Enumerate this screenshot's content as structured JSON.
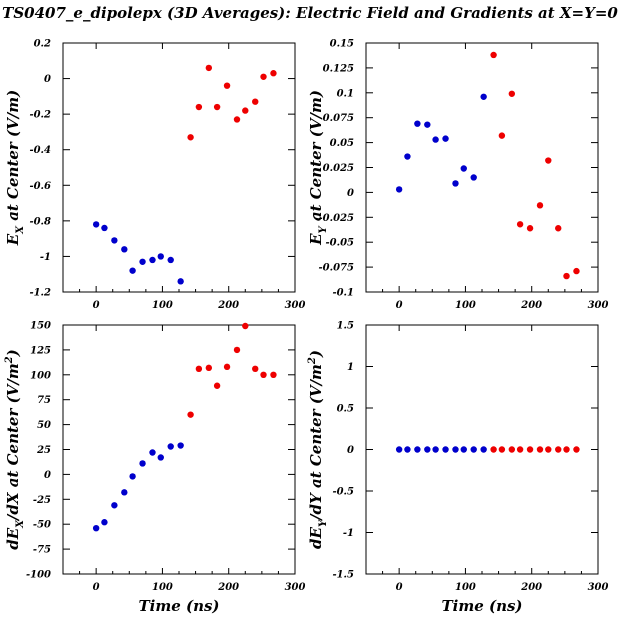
{
  "title": "TS0407_e_dipolepx (3D Averages): Electric Field and Gradients at X=Y=0",
  "colors": {
    "early": "#0000cc",
    "late": "#ee0000",
    "frame": "#000000"
  },
  "chart_data": [
    {
      "type": "scatter",
      "xlabel": "",
      "ylabel": "E_X at Center (V/m)",
      "ylabel_parts": {
        "main": "E",
        "sub": "X",
        "rest": " at Center (V/m)"
      },
      "xlim": [
        -50,
        300
      ],
      "ylim": [
        -1.2,
        0.2
      ],
      "xticks": [
        0,
        100,
        200,
        300
      ],
      "yticks": [
        0.2,
        0,
        -0.2,
        -0.4,
        -0.6,
        -0.8,
        -1,
        -1.2
      ],
      "ytick_labels": [
        "0.2",
        "0",
        "-0.2",
        "-0.4",
        "-0.6",
        "-0.8",
        "-1",
        "-1.2"
      ],
      "series": [
        {
          "color": "#0000cc",
          "x": [
            0,
            12.5,
            27.5,
            42.5,
            55,
            70,
            85,
            97.5,
            112.5,
            127.5
          ],
          "y": [
            -0.82,
            -0.84,
            -0.91,
            -0.96,
            -1.08,
            -1.03,
            -1.02,
            -1.0,
            -1.02,
            -1.14
          ]
        },
        {
          "color": "#ee0000",
          "x": [
            142.5,
            155,
            170,
            182.5,
            197.5,
            212.5,
            225,
            240,
            252.5,
            267.5
          ],
          "y": [
            -0.33,
            -0.16,
            0.06,
            -0.16,
            -0.04,
            -0.23,
            -0.18,
            -0.13,
            0.01,
            0.03
          ]
        }
      ]
    },
    {
      "type": "scatter",
      "xlabel": "",
      "ylabel": "E_Y at Center (V/m)",
      "ylabel_parts": {
        "main": "E",
        "sub": "Y",
        "rest": " at Center (V/m)"
      },
      "xlim": [
        -50,
        300
      ],
      "ylim": [
        -0.1,
        0.15
      ],
      "xticks": [
        0,
        100,
        200,
        300
      ],
      "yticks": [
        0.15,
        0.125,
        0.1,
        0.075,
        0.05,
        0.025,
        0,
        -0.025,
        -0.05,
        -0.075,
        -0.1
      ],
      "ytick_labels": [
        "0.15",
        "0.125",
        "0.1",
        "0.075",
        "0.05",
        "0.025",
        "0",
        "-0.025",
        "-0.05",
        "-0.075",
        "-0.1"
      ],
      "series": [
        {
          "color": "#0000cc",
          "x": [
            0,
            12.5,
            27.5,
            42.5,
            55,
            70,
            85,
            97.5,
            112.5,
            127.5
          ],
          "y": [
            0.003,
            0.036,
            0.069,
            0.068,
            0.053,
            0.054,
            0.009,
            0.024,
            0.015,
            0.096
          ]
        },
        {
          "color": "#ee0000",
          "x": [
            142.5,
            155,
            170,
            182.5,
            197.5,
            212.5,
            225,
            240,
            252.5,
            267.5
          ],
          "y": [
            0.138,
            0.057,
            0.099,
            -0.032,
            -0.036,
            -0.013,
            0.032,
            -0.036,
            -0.084,
            -0.079
          ]
        }
      ]
    },
    {
      "type": "scatter",
      "xlabel": "Time (ns)",
      "ylabel": "dE_X/dX at Center (V/m^2)",
      "ylabel_parts": {
        "main": "dE",
        "sub": "X",
        "rest": "/dX at Center (V/m",
        "sup": "2",
        "end": ")"
      },
      "xlim": [
        -50,
        300
      ],
      "ylim": [
        -100,
        150
      ],
      "xticks": [
        0,
        100,
        200,
        300
      ],
      "yticks": [
        150,
        125,
        100,
        75,
        50,
        25,
        0,
        -25,
        -50,
        -75,
        -100
      ],
      "ytick_labels": [
        "150",
        "125",
        "100",
        "75",
        "50",
        "25",
        "0",
        "-25",
        "-50",
        "-75",
        "-100"
      ],
      "series": [
        {
          "color": "#0000cc",
          "x": [
            0,
            12.5,
            27.5,
            42.5,
            55,
            70,
            85,
            97.5,
            112.5,
            127.5
          ],
          "y": [
            -54,
            -48,
            -31,
            -18,
            -2,
            11,
            22,
            17,
            28,
            29
          ]
        },
        {
          "color": "#ee0000",
          "x": [
            142.5,
            155,
            170,
            182.5,
            197.5,
            212.5,
            225,
            240,
            252.5,
            267.5
          ],
          "y": [
            60,
            106,
            107,
            89,
            108,
            125,
            149,
            106,
            100,
            100
          ]
        }
      ]
    },
    {
      "type": "scatter",
      "xlabel": "Time (ns)",
      "ylabel": "dE_Y/dY at Center (V/m^2)",
      "ylabel_parts": {
        "main": "dE",
        "sub": "Y",
        "rest": "/dY at Center (V/m",
        "sup": "2",
        "end": ")"
      },
      "xlim": [
        -50,
        300
      ],
      "ylim": [
        -1.5,
        1.5
      ],
      "xticks": [
        0,
        100,
        200,
        300
      ],
      "yticks": [
        1.5,
        1,
        0.5,
        0,
        -0.5,
        -1,
        -1.5
      ],
      "ytick_labels": [
        "1.5",
        "1",
        "0.5",
        "0",
        "-0.5",
        "-1",
        "-1.5"
      ],
      "series": [
        {
          "color": "#0000cc",
          "x": [
            0,
            12.5,
            27.5,
            42.5,
            55,
            70,
            85,
            97.5,
            112.5,
            127.5
          ],
          "y": [
            0,
            0,
            0,
            0,
            0,
            0,
            0,
            0,
            0,
            0
          ]
        },
        {
          "color": "#ee0000",
          "x": [
            142.5,
            155,
            170,
            182.5,
            197.5,
            212.5,
            225,
            240,
            252.5,
            267.5
          ],
          "y": [
            0,
            0,
            0,
            0,
            0,
            0,
            0,
            0,
            0,
            0
          ]
        }
      ]
    }
  ]
}
